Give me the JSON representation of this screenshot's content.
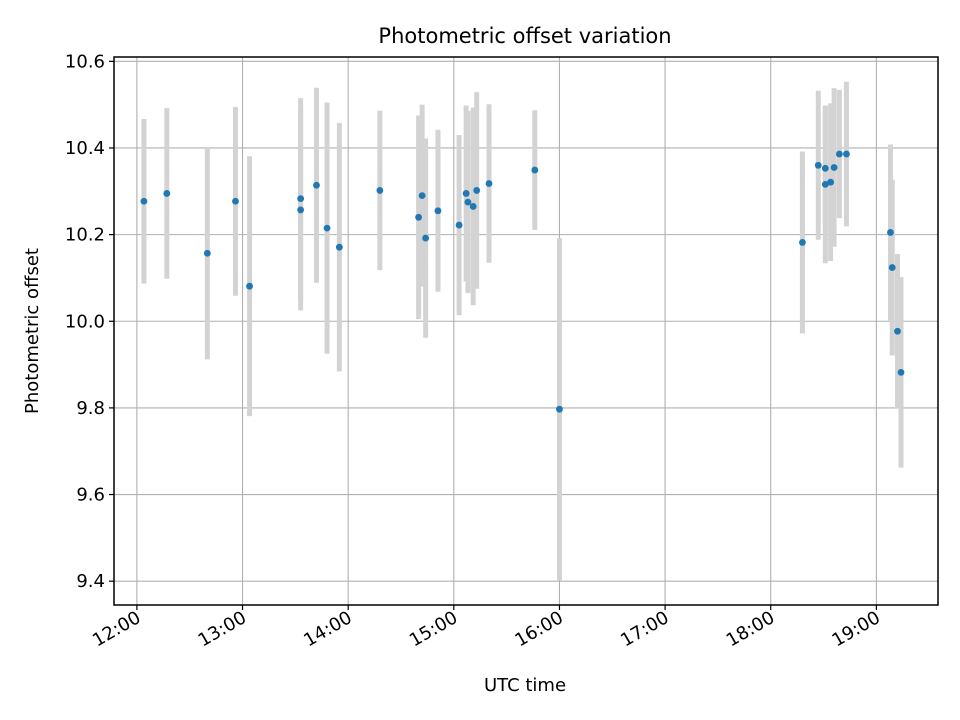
{
  "chart_data": {
    "type": "scatter",
    "title": "Photometric offset variation",
    "xlabel": "UTC time",
    "ylabel": "Photometric offset",
    "x_tick_labels": [
      "12:00",
      "13:00",
      "14:00",
      "15:00",
      "16:00",
      "17:00",
      "18:00",
      "19:00"
    ],
    "y_tick_labels": [
      "9.4",
      "9.6",
      "9.8",
      "10.0",
      "10.2",
      "10.4",
      "10.6"
    ],
    "xlim": [
      "11:47",
      "19:35"
    ],
    "ylim": [
      9.345,
      10.61
    ],
    "grid": true,
    "colors": {
      "marker": "#1f77b4",
      "errorbar": "#d3d3d3",
      "grid": "#b0b0b0"
    },
    "points": [
      {
        "x": "12:04",
        "y": 10.277,
        "err": 0.19
      },
      {
        "x": "12:17",
        "y": 10.295,
        "err": 0.197
      },
      {
        "x": "12:40",
        "y": 10.157,
        "err": 0.245
      },
      {
        "x": "12:56",
        "y": 10.277,
        "err": 0.218
      },
      {
        "x": "13:04",
        "y": 10.081,
        "err": 0.3
      },
      {
        "x": "13:33",
        "y": 10.283,
        "err": 0.232
      },
      {
        "x": "13:33",
        "y": 10.257,
        "err": 0.232
      },
      {
        "x": "13:42",
        "y": 10.314,
        "err": 0.225
      },
      {
        "x": "13:48",
        "y": 10.215,
        "err": 0.29
      },
      {
        "x": "13:55",
        "y": 10.171,
        "err": 0.287
      },
      {
        "x": "14:18",
        "y": 10.302,
        "err": 0.184
      },
      {
        "x": "14:40",
        "y": 10.24,
        "err": 0.235
      },
      {
        "x": "14:42",
        "y": 10.29,
        "err": 0.21
      },
      {
        "x": "14:44",
        "y": 10.192,
        "err": 0.23
      },
      {
        "x": "14:51",
        "y": 10.255,
        "err": 0.187
      },
      {
        "x": "15:03",
        "y": 10.222,
        "err": 0.208
      },
      {
        "x": "15:07",
        "y": 10.295,
        "err": 0.203
      },
      {
        "x": "15:08",
        "y": 10.275,
        "err": 0.21
      },
      {
        "x": "15:11",
        "y": 10.265,
        "err": 0.228
      },
      {
        "x": "15:13",
        "y": 10.302,
        "err": 0.227
      },
      {
        "x": "15:20",
        "y": 10.318,
        "err": 0.183
      },
      {
        "x": "15:46",
        "y": 10.349,
        "err": 0.138
      },
      {
        "x": "16:00",
        "y": 9.797,
        "err": 0.395
      },
      {
        "x": "18:18",
        "y": 10.182,
        "err": 0.21
      },
      {
        "x": "18:27",
        "y": 10.36,
        "err": 0.172
      },
      {
        "x": "18:31",
        "y": 10.353,
        "err": 0.142
      },
      {
        "x": "18:31",
        "y": 10.316,
        "err": 0.182
      },
      {
        "x": "18:34",
        "y": 10.321,
        "err": 0.182
      },
      {
        "x": "18:36",
        "y": 10.355,
        "err": 0.183
      },
      {
        "x": "18:39",
        "y": 10.386,
        "err": 0.148
      },
      {
        "x": "18:43",
        "y": 10.386,
        "err": 0.167
      },
      {
        "x": "19:08",
        "y": 10.205,
        "err": 0.203
      },
      {
        "x": "19:09",
        "y": 10.124,
        "err": 0.203
      },
      {
        "x": "19:12",
        "y": 9.977,
        "err": 0.178
      },
      {
        "x": "19:14",
        "y": 9.882,
        "err": 0.22
      }
    ]
  }
}
